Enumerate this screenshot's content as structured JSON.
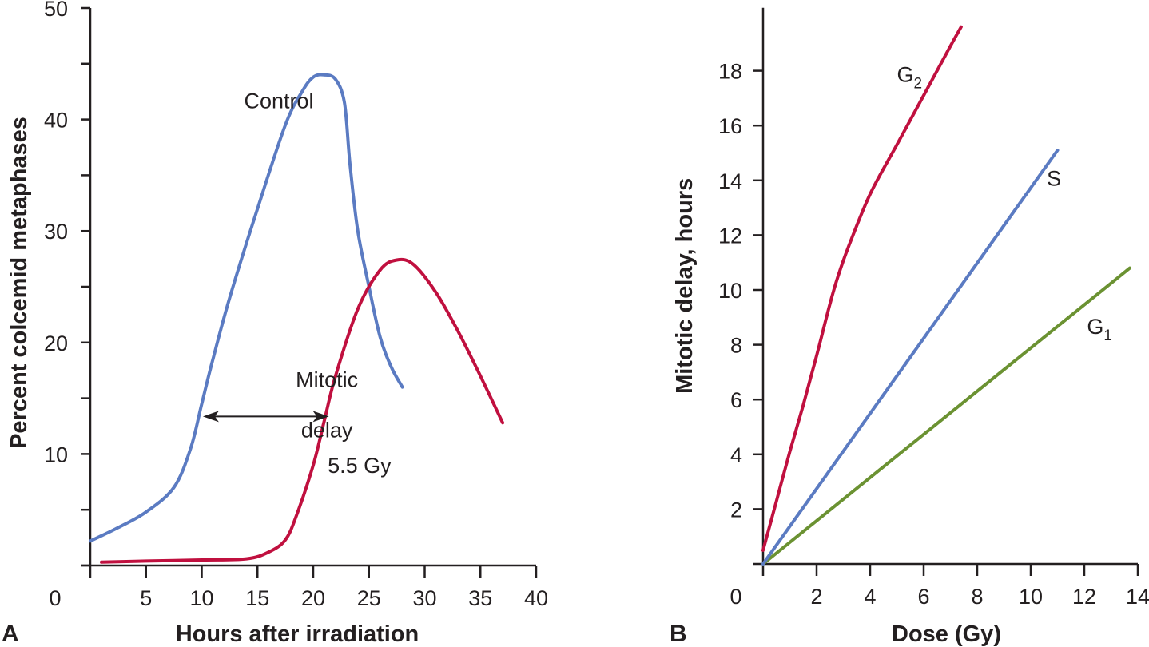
{
  "chart_data": [
    {
      "panel": "A",
      "type": "line",
      "title": "",
      "xlabel": "Hours after irradiation",
      "ylabel": "Percent colcemid metaphases",
      "xlim": [
        0,
        40
      ],
      "ylim": [
        0,
        50
      ],
      "xticks": [
        0,
        5,
        10,
        15,
        20,
        25,
        30,
        35,
        40
      ],
      "yticks": [
        0,
        5,
        10,
        15,
        20,
        25,
        30,
        35,
        40,
        45,
        50
      ],
      "ytick_labels": [
        "10",
        "20",
        "30",
        "40",
        "50"
      ],
      "ytick_label_values": [
        10,
        20,
        30,
        40,
        50
      ],
      "grid": false,
      "series": [
        {
          "name": "Control",
          "color": "#5b7bc2",
          "x": [
            0,
            2.5,
            5,
            7.5,
            9,
            10,
            11,
            12.5,
            15,
            17.5,
            19,
            20,
            21,
            22,
            22.8,
            23.3,
            24,
            25,
            26,
            27,
            28
          ],
          "y": [
            2.2,
            3.4,
            4.8,
            7,
            10.5,
            14.5,
            18.5,
            24,
            32,
            39.5,
            42.5,
            43.8,
            44,
            43.6,
            41.5,
            36,
            30,
            25,
            20.5,
            17.8,
            16
          ]
        },
        {
          "name": "5.5 Gy",
          "color": "#c0103f",
          "x": [
            1,
            5,
            10,
            14,
            16,
            17.5,
            18.5,
            20,
            21,
            22,
            24,
            26,
            27.5,
            29,
            31,
            33,
            35,
            37
          ],
          "y": [
            0.3,
            0.4,
            0.5,
            0.6,
            1.2,
            2.3,
            4.5,
            9,
            13,
            17,
            23,
            26.5,
            27.4,
            27,
            24.5,
            21,
            17,
            12.8
          ]
        }
      ],
      "annotations": [
        {
          "text": "Control",
          "x": 13.8,
          "y": 41
        },
        {
          "text": "Mitotic",
          "x": 17.5,
          "y": 16
        },
        {
          "text": "delay",
          "x": 17.5,
          "y": 11.5
        },
        {
          "text": "5.5 Gy",
          "x": 21.3,
          "y": 8.3
        }
      ],
      "arrow": {
        "label": "Mitotic delay",
        "x_start": 10.1,
        "x_end": 21.4,
        "y": 14.3
      }
    },
    {
      "panel": "B",
      "type": "line",
      "title": "",
      "xlabel": "Dose (Gy)",
      "ylabel": "Mitotic delay, hours",
      "xlim": [
        0,
        14
      ],
      "ylim": [
        0,
        20.3
      ],
      "xticks": [
        0,
        2,
        4,
        6,
        8,
        10,
        12,
        14
      ],
      "yticks": [
        2,
        4,
        6,
        8,
        10,
        12,
        14,
        16,
        18
      ],
      "grid": false,
      "series": [
        {
          "name": "G2",
          "label_main": "G",
          "label_sub": "2",
          "color": "#c0103f",
          "x": [
            0,
            0.5,
            1,
            1.5,
            2,
            2.5,
            2.8,
            3.2,
            4,
            5,
            6,
            7,
            7.4
          ],
          "y": [
            0.5,
            2.3,
            4.1,
            5.8,
            7.6,
            9.5,
            10.5,
            11.6,
            13.5,
            15.3,
            17.1,
            18.9,
            19.6
          ]
        },
        {
          "name": "S",
          "label_main": "S",
          "label_sub": "",
          "color": "#5b7bc2",
          "x": [
            0,
            11
          ],
          "y": [
            0,
            15.1
          ]
        },
        {
          "name": "G1",
          "label_main": "G",
          "label_sub": "1",
          "color": "#6b9232",
          "x": [
            0,
            13.7
          ],
          "y": [
            0,
            10.8
          ]
        }
      ],
      "annotations": [
        {
          "series": "G2",
          "x": 5.0,
          "y": 17.6
        },
        {
          "series": "S",
          "x": 10.6,
          "y": 13.8
        },
        {
          "series": "G1",
          "x": 12.1,
          "y": 8.4
        }
      ]
    }
  ],
  "panels": {
    "a_letter": "A",
    "b_letter": "B"
  }
}
